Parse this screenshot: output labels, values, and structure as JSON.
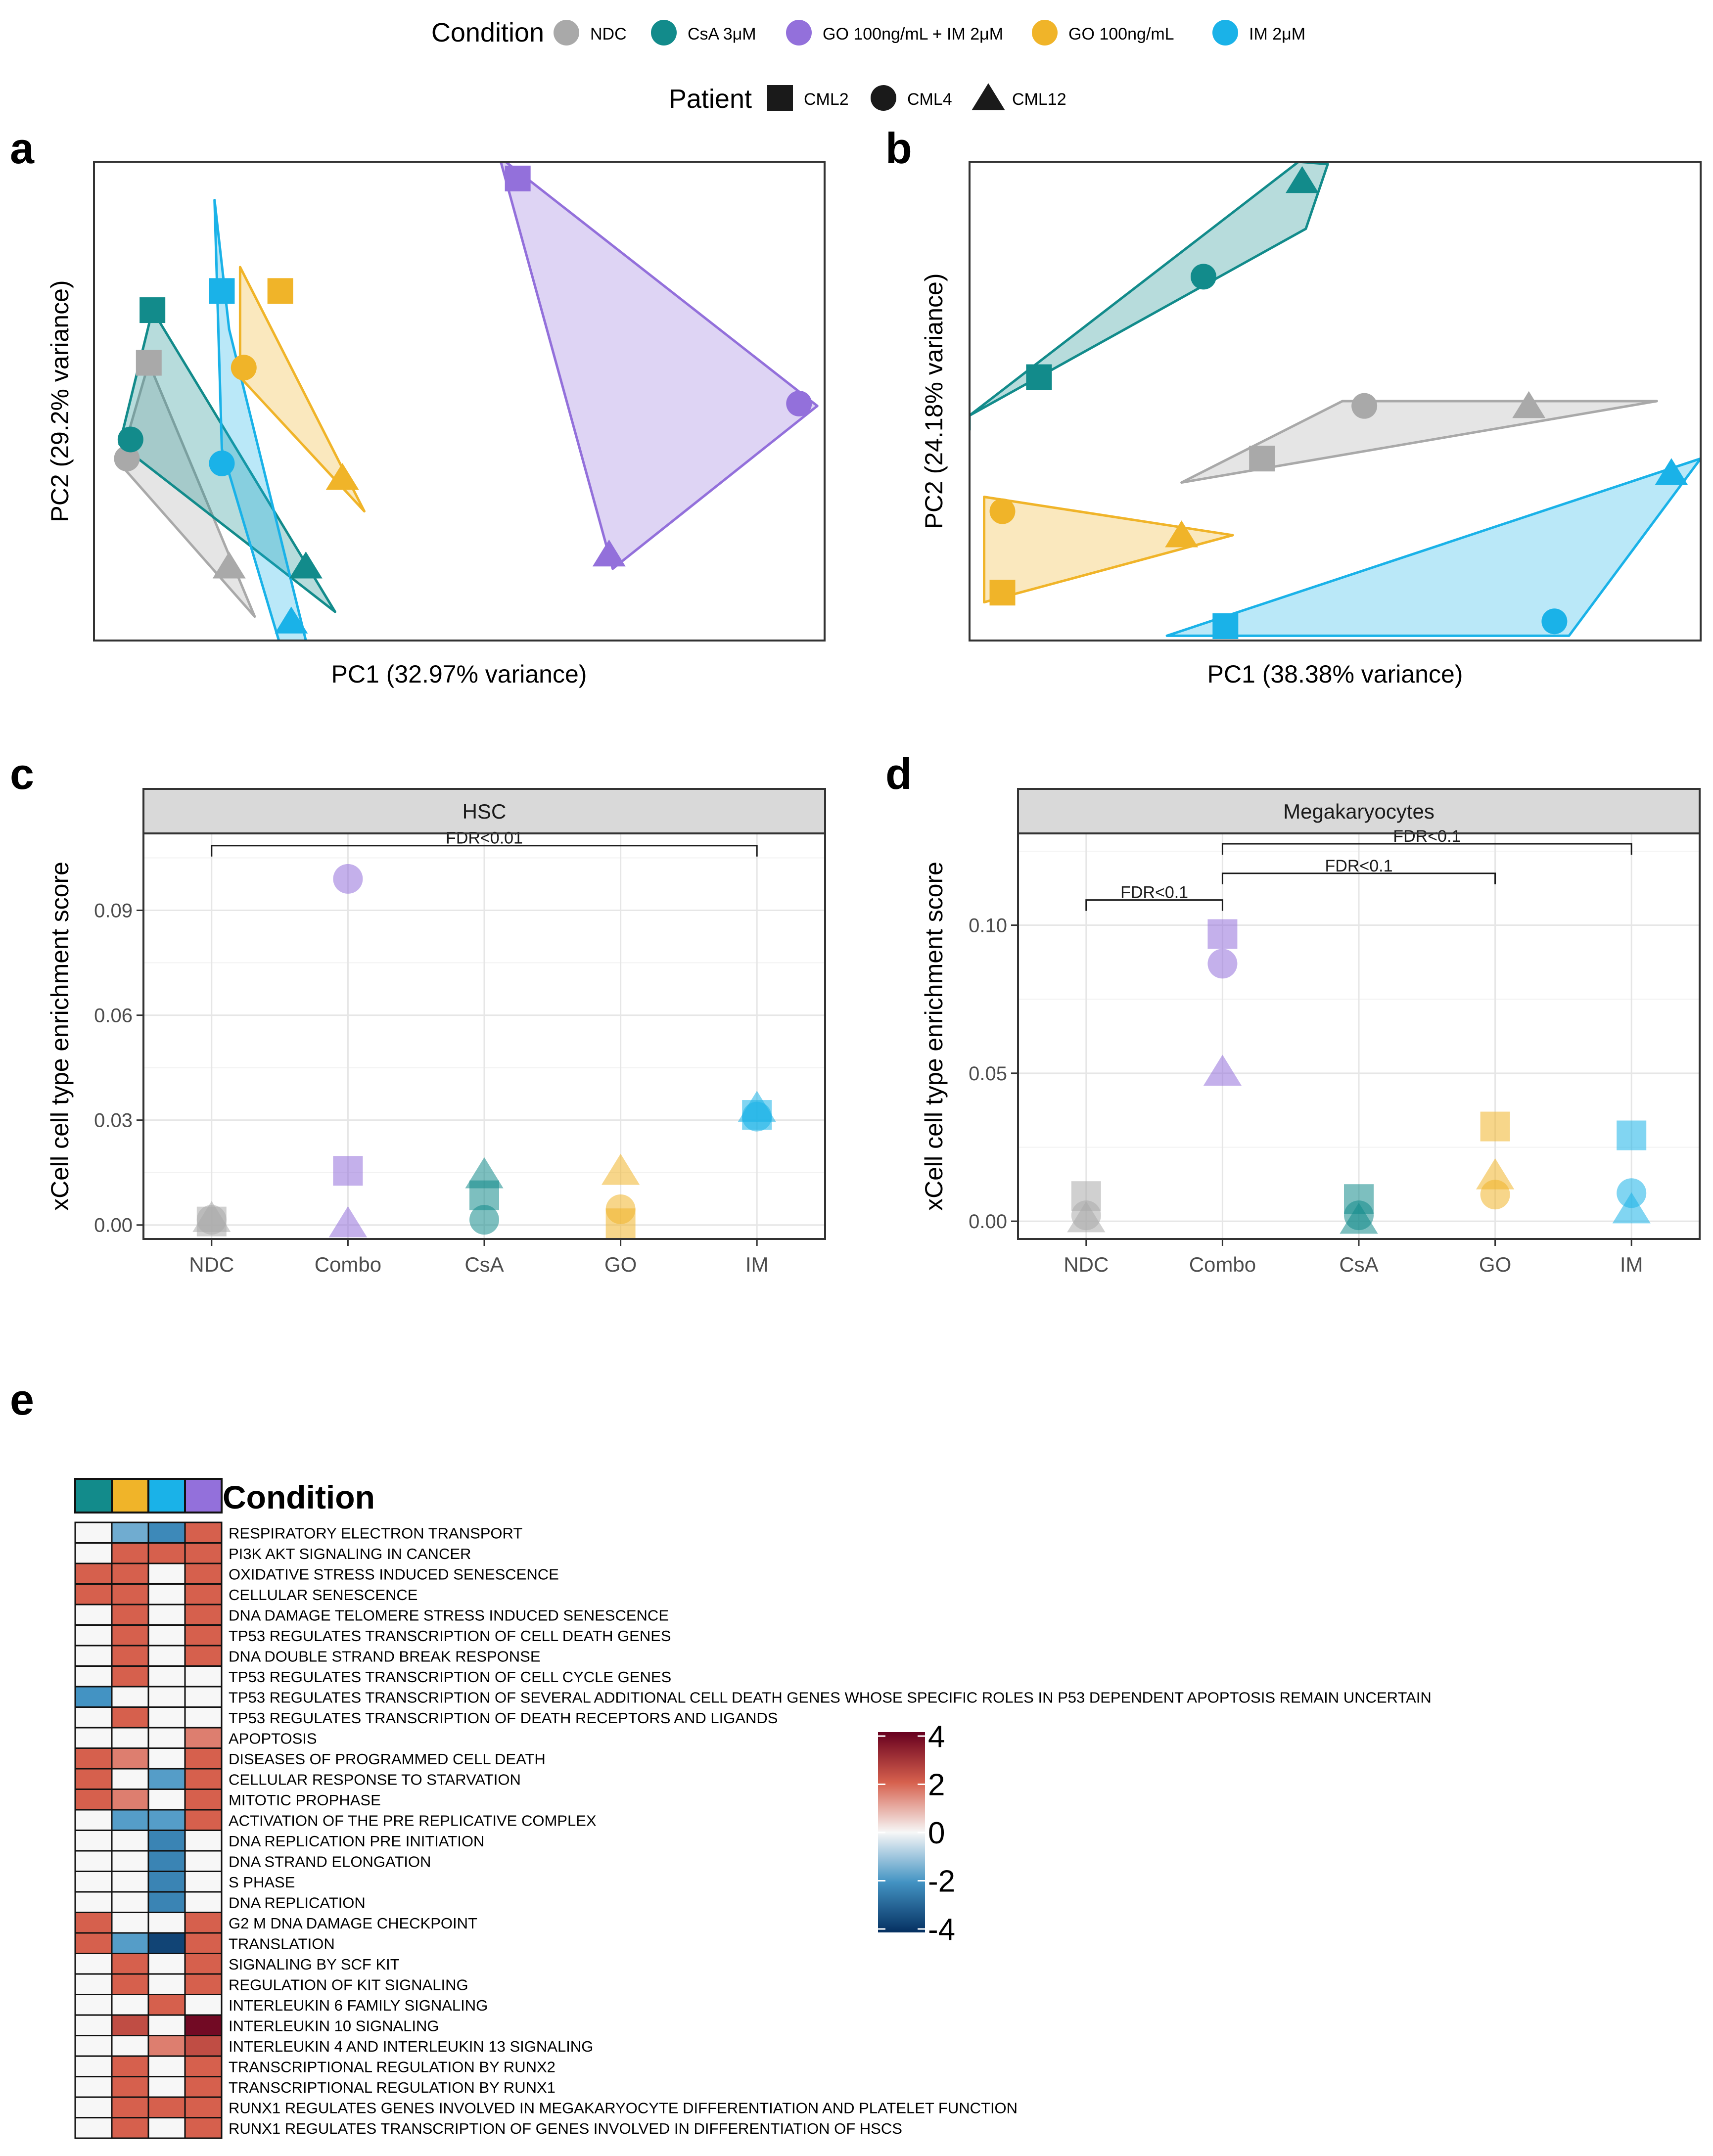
{
  "legend": {
    "condition_title": "Condition",
    "patient_title": "Patient",
    "conditions": [
      {
        "key": "NDC",
        "label": "NDC",
        "color": "#a9a9a9"
      },
      {
        "key": "CsA",
        "label": "CsA 3μM",
        "color": "#128b8b"
      },
      {
        "key": "Combo",
        "label": "GO 100ng/mL + IM 2μM",
        "color": "#9370db"
      },
      {
        "key": "GO",
        "label": "GO 100ng/mL",
        "color": "#f0b429"
      },
      {
        "key": "IM",
        "label": "IM 2μM",
        "color": "#1ab2e8"
      }
    ],
    "patients": [
      {
        "key": "CML2",
        "label": "CML2",
        "shape": "square"
      },
      {
        "key": "CML4",
        "label": "CML4",
        "shape": "circle"
      },
      {
        "key": "CML12",
        "label": "CML12",
        "shape": "triangle"
      }
    ]
  },
  "panel_labels": {
    "a": "a",
    "b": "b",
    "c": "c",
    "d": "d",
    "e": "e"
  },
  "chart_data": [
    {
      "id": "a",
      "type": "scatter",
      "xlabel": "PC1 (32.97% variance)",
      "ylabel": "PC2 (29.2% variance)",
      "xlim": [
        0,
        100
      ],
      "ylim": [
        0,
        100
      ],
      "hulls": [
        {
          "condition": "NDC",
          "polygon": [
            [
              3.5,
              37
            ],
            [
              7.5,
              58
            ],
            [
              22,
              5
            ]
          ]
        },
        {
          "condition": "CsA",
          "polygon": [
            [
              3.5,
              41
            ],
            [
              8,
              69
            ],
            [
              33,
              6
            ]
          ]
        },
        {
          "condition": "IM",
          "polygon": [
            [
              16.5,
              92
            ],
            [
              18.5,
              65
            ],
            [
              29,
              0
            ],
            [
              25.5,
              -1
            ],
            [
              17.5,
              40
            ]
          ]
        },
        {
          "condition": "GO",
          "polygon": [
            [
              20,
              78
            ],
            [
              37,
              27
            ],
            [
              20,
              55
            ]
          ]
        },
        {
          "condition": "Combo",
          "polygon": [
            [
              55.5,
              101
            ],
            [
              99,
              49
            ],
            [
              71,
              15
            ]
          ]
        }
      ],
      "points": [
        {
          "condition": "NDC",
          "patient": "CML2",
          "x": 7.5,
          "y": 58
        },
        {
          "condition": "NDC",
          "patient": "CML4",
          "x": 4.5,
          "y": 38
        },
        {
          "condition": "NDC",
          "patient": "CML12",
          "x": 18.5,
          "y": 15.5
        },
        {
          "condition": "CsA",
          "patient": "CML2",
          "x": 8,
          "y": 69
        },
        {
          "condition": "CsA",
          "patient": "CML4",
          "x": 5,
          "y": 42
        },
        {
          "condition": "CsA",
          "patient": "CML12",
          "x": 29,
          "y": 15.5
        },
        {
          "condition": "IM",
          "patient": "CML2",
          "x": 17.5,
          "y": 73
        },
        {
          "condition": "IM",
          "patient": "CML4",
          "x": 17.5,
          "y": 37
        },
        {
          "condition": "IM",
          "patient": "CML12",
          "x": 27,
          "y": 4
        },
        {
          "condition": "GO",
          "patient": "CML2",
          "x": 25.5,
          "y": 73
        },
        {
          "condition": "GO",
          "patient": "CML4",
          "x": 20.5,
          "y": 57
        },
        {
          "condition": "GO",
          "patient": "CML12",
          "x": 34,
          "y": 34
        },
        {
          "condition": "Combo",
          "patient": "CML2",
          "x": 58,
          "y": 96.5
        },
        {
          "condition": "Combo",
          "patient": "CML4",
          "x": 96.5,
          "y": 49.5
        },
        {
          "condition": "Combo",
          "patient": "CML12",
          "x": 70.5,
          "y": 18
        }
      ]
    },
    {
      "id": "b",
      "type": "scatter",
      "xlabel": "PC1 (38.38% variance)",
      "ylabel": "PC2 (24.18% variance)",
      "xlim": [
        0,
        100
      ],
      "ylim": [
        0,
        100
      ],
      "hulls": [
        {
          "condition": "CsA",
          "polygon": [
            [
              0,
              44
            ],
            [
              0,
              47
            ],
            [
              46,
              86
            ],
            [
              49,
              99.5
            ],
            [
              45,
              100
            ],
            [
              0,
              47
            ]
          ]
        },
        {
          "condition": "NDC",
          "polygon": [
            [
              29,
              33
            ],
            [
              94,
              50
            ],
            [
              51,
              50
            ]
          ]
        },
        {
          "condition": "GO",
          "polygon": [
            [
              2,
              30
            ],
            [
              2,
              8
            ],
            [
              36,
              22
            ]
          ]
        },
        {
          "condition": "IM",
          "polygon": [
            [
              27,
              1
            ],
            [
              100,
              38
            ],
            [
              82,
              1
            ]
          ]
        }
      ],
      "points": [
        {
          "condition": "CsA",
          "patient": "CML2",
          "x": 9.5,
          "y": 55
        },
        {
          "condition": "CsA",
          "patient": "CML4",
          "x": 32,
          "y": 76
        },
        {
          "condition": "CsA",
          "patient": "CML12",
          "x": 45.5,
          "y": 96
        },
        {
          "condition": "NDC",
          "patient": "CML2",
          "x": 40,
          "y": 38
        },
        {
          "condition": "NDC",
          "patient": "CML4",
          "x": 54,
          "y": 49
        },
        {
          "condition": "NDC",
          "patient": "CML12",
          "x": 76.5,
          "y": 49
        },
        {
          "condition": "GO",
          "patient": "CML2",
          "x": 4.5,
          "y": 10
        },
        {
          "condition": "GO",
          "patient": "CML4",
          "x": 4.5,
          "y": 27
        },
        {
          "condition": "GO",
          "patient": "CML12",
          "x": 29,
          "y": 22
        },
        {
          "condition": "IM",
          "patient": "CML2",
          "x": 35,
          "y": 3
        },
        {
          "condition": "IM",
          "patient": "CML4",
          "x": 80,
          "y": 4
        },
        {
          "condition": "IM",
          "patient": "CML12",
          "x": 96,
          "y": 35
        }
      ]
    },
    {
      "id": "c",
      "type": "scatter",
      "strip_title": "HSC",
      "xlabel": "",
      "ylabel": "xCell cell type enrichment score",
      "categories": [
        "NDC",
        "Combo",
        "CsA",
        "GO",
        "IM"
      ],
      "category_conditions": [
        "NDC",
        "Combo",
        "CsA",
        "GO",
        "IM"
      ],
      "ylim": [
        -0.004,
        0.112
      ],
      "yticks": [
        0.0,
        0.03,
        0.06,
        0.09
      ],
      "ytick_labels": [
        "0.00",
        "0.03",
        "0.06",
        "0.09"
      ],
      "points": [
        {
          "category": "NDC",
          "patient": "CML2",
          "y": 0.001
        },
        {
          "category": "NDC",
          "patient": "CML4",
          "y": 0.0015
        },
        {
          "category": "NDC",
          "patient": "CML12",
          "y": 0.002
        },
        {
          "category": "Combo",
          "patient": "CML2",
          "y": 0.0155
        },
        {
          "category": "Combo",
          "patient": "CML4",
          "y": 0.099
        },
        {
          "category": "Combo",
          "patient": "CML12",
          "y": 0.0005
        },
        {
          "category": "CsA",
          "patient": "CML2",
          "y": 0.0085
        },
        {
          "category": "CsA",
          "patient": "CML4",
          "y": 0.0015
        },
        {
          "category": "CsA",
          "patient": "CML12",
          "y": 0.0145
        },
        {
          "category": "GO",
          "patient": "CML2",
          "y": 0.0005
        },
        {
          "category": "GO",
          "patient": "CML4",
          "y": 0.0045
        },
        {
          "category": "GO",
          "patient": "CML12",
          "y": 0.0155
        },
        {
          "category": "IM",
          "patient": "CML2",
          "y": 0.0315
        },
        {
          "category": "IM",
          "patient": "CML4",
          "y": 0.031
        },
        {
          "category": "IM",
          "patient": "CML12",
          "y": 0.0335
        }
      ],
      "brackets": [
        {
          "from": "NDC",
          "to": "IM",
          "y": 0.1085,
          "label": "FDR<0.01"
        }
      ]
    },
    {
      "id": "d",
      "type": "scatter",
      "strip_title": "Megakaryocytes",
      "xlabel": "",
      "ylabel": "xCell cell type enrichment score",
      "categories": [
        "NDC",
        "Combo",
        "CsA",
        "GO",
        "IM"
      ],
      "category_conditions": [
        "NDC",
        "Combo",
        "CsA",
        "GO",
        "IM"
      ],
      "ylim": [
        -0.006,
        0.131
      ],
      "yticks": [
        0.0,
        0.05,
        0.1
      ],
      "ytick_labels": [
        "0.00",
        "0.05",
        "0.10"
      ],
      "points": [
        {
          "category": "NDC",
          "patient": "CML2",
          "y": 0.0085
        },
        {
          "category": "NDC",
          "patient": "CML4",
          "y": 0.002
        },
        {
          "category": "NDC",
          "patient": "CML12",
          "y": 0.001
        },
        {
          "category": "Combo",
          "patient": "CML2",
          "y": 0.097
        },
        {
          "category": "Combo",
          "patient": "CML4",
          "y": 0.087
        },
        {
          "category": "Combo",
          "patient": "CML12",
          "y": 0.0505
        },
        {
          "category": "CsA",
          "patient": "CML2",
          "y": 0.0075
        },
        {
          "category": "CsA",
          "patient": "CML4",
          "y": 0.002
        },
        {
          "category": "CsA",
          "patient": "CML12",
          "y": 0.0005
        },
        {
          "category": "GO",
          "patient": "CML2",
          "y": 0.032
        },
        {
          "category": "GO",
          "patient": "CML4",
          "y": 0.009
        },
        {
          "category": "GO",
          "patient": "CML12",
          "y": 0.0155
        },
        {
          "category": "IM",
          "patient": "CML2",
          "y": 0.029
        },
        {
          "category": "IM",
          "patient": "CML4",
          "y": 0.0095
        },
        {
          "category": "IM",
          "patient": "CML12",
          "y": 0.004
        }
      ],
      "brackets": [
        {
          "from": "NDC",
          "to": "Combo",
          "y": 0.1085,
          "label": "FDR<0.1"
        },
        {
          "from": "Combo",
          "to": "GO",
          "y": 0.1175,
          "label": "FDR<0.1"
        },
        {
          "from": "Combo",
          "to": "IM",
          "y": 0.1275,
          "label": "FDR<0.1"
        }
      ]
    },
    {
      "id": "e",
      "type": "heatmap",
      "annotation_title": "Condition",
      "columns": [
        "CsA",
        "GO",
        "IM",
        "Combo"
      ],
      "colorbar": {
        "min": -4,
        "max": 4,
        "ticks": [
          4,
          2,
          0,
          -2,
          -4
        ],
        "tick_labels": [
          "4",
          "2",
          "0",
          "-2",
          "-4"
        ]
      },
      "rows": [
        "RESPIRATORY ELECTRON TRANSPORT",
        "PI3K AKT SIGNALING IN CANCER",
        "OXIDATIVE STRESS INDUCED SENESCENCE",
        "CELLULAR SENESCENCE",
        "DNA DAMAGE TELOMERE STRESS INDUCED SENESCENCE",
        "TP53 REGULATES TRANSCRIPTION OF CELL DEATH GENES",
        "DNA DOUBLE STRAND BREAK RESPONSE",
        "TP53 REGULATES TRANSCRIPTION OF CELL CYCLE GENES",
        "TP53 REGULATES TRANSCRIPTION OF SEVERAL ADDITIONAL CELL DEATH GENES WHOSE SPECIFIC ROLES IN P53 DEPENDENT APOPTOSIS REMAIN UNCERTAIN",
        "TP53 REGULATES TRANSCRIPTION OF DEATH RECEPTORS AND LIGANDS",
        "APOPTOSIS",
        "DISEASES OF PROGRAMMED CELL DEATH",
        "CELLULAR RESPONSE TO STARVATION",
        "MITOTIC PROPHASE",
        "ACTIVATION OF THE PRE REPLICATIVE COMPLEX",
        "DNA REPLICATION PRE INITIATION",
        "DNA STRAND ELONGATION",
        "S PHASE",
        "DNA REPLICATION",
        "G2 M DNA DAMAGE CHECKPOINT",
        "TRANSLATION",
        "SIGNALING BY SCF KIT",
        "REGULATION OF KIT SIGNALING",
        "INTERLEUKIN 6 FAMILY SIGNALING",
        "INTERLEUKIN 10 SIGNALING",
        "INTERLEUKIN 4 AND INTERLEUKIN 13 SIGNALING",
        "TRANSCRIPTIONAL REGULATION BY RUNX2",
        "TRANSCRIPTIONAL REGULATION BY RUNX1",
        "RUNX1 REGULATES GENES INVOLVED IN MEGAKARYOCYTE DIFFERENTIATION AND PLATELET FUNCTION",
        "RUNX1 REGULATES TRANSCRIPTION OF GENES INVOLVED IN DIFFERENTIATION OF HSCS"
      ],
      "values": [
        [
          0,
          -1.5,
          -2.2,
          2.0
        ],
        [
          0,
          2.0,
          2.0,
          2.0
        ],
        [
          2.0,
          2.0,
          0,
          2.0
        ],
        [
          2.0,
          2.0,
          0,
          2.0
        ],
        [
          0,
          2.0,
          0,
          2.0
        ],
        [
          0,
          2.0,
          0,
          2.0
        ],
        [
          0,
          2.0,
          0,
          2.0
        ],
        [
          0,
          2.0,
          0,
          0
        ],
        [
          -2.0,
          0,
          0,
          0
        ],
        [
          0,
          2.0,
          0,
          0
        ],
        [
          0,
          0,
          0,
          1.6
        ],
        [
          2.0,
          1.6,
          0,
          2.0
        ],
        [
          2.0,
          0,
          -1.8,
          2.0
        ],
        [
          2.0,
          1.6,
          0,
          2.0
        ],
        [
          0,
          -1.8,
          -1.8,
          2.0
        ],
        [
          0,
          0,
          -2.3,
          0
        ],
        [
          0,
          0,
          -2.3,
          0
        ],
        [
          0,
          0,
          -2.3,
          0
        ],
        [
          0,
          0,
          -2.3,
          0
        ],
        [
          2.0,
          0,
          0,
          2.0
        ],
        [
          2.0,
          -1.8,
          -3.6,
          2.0
        ],
        [
          0,
          2.0,
          0,
          2.0
        ],
        [
          0,
          2.0,
          0,
          2.0
        ],
        [
          0,
          0,
          2.0,
          0
        ],
        [
          0,
          2.4,
          0,
          3.8
        ],
        [
          0,
          0,
          1.6,
          2.4
        ],
        [
          0,
          2.0,
          0,
          2.0
        ],
        [
          0,
          2.0,
          0,
          2.0
        ],
        [
          0,
          2.0,
          2.0,
          2.0
        ],
        [
          0,
          2.0,
          0,
          2.0
        ]
      ]
    }
  ]
}
